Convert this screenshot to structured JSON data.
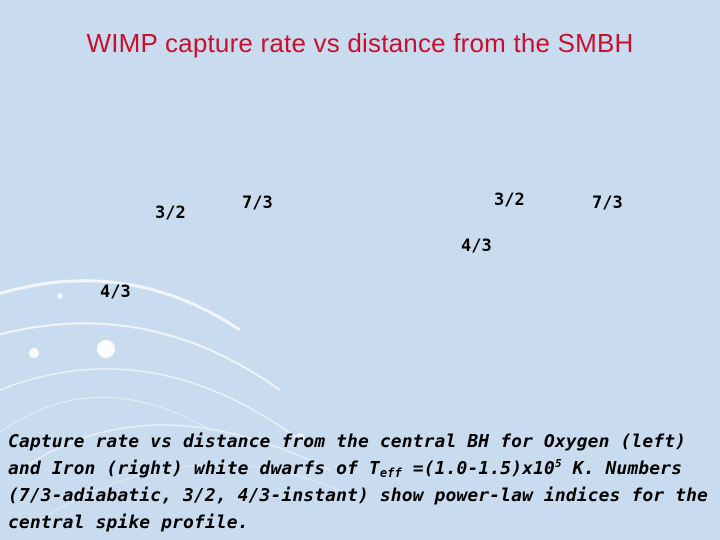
{
  "slide": {
    "title": "WIMP capture rate vs distance from the SMBH",
    "left_panel": {
      "label_a": "3/2",
      "label_b": "7/3",
      "label_c": "4/3"
    },
    "right_panel": {
      "label_a": "3/2",
      "label_b": "7/3",
      "label_c": "4/3"
    },
    "caption": {
      "part1": "Capture rate vs distance from the central BH for Oxygen (left) and Iron (right) white dwarfs of T",
      "sub": "eff",
      "part2": " =(1.0-1.5)x10",
      "sup": "5",
      "part3": " K. Numbers (7/3-adiabatic, 3/2, 4/3-instant) show power-law indices for the central spike profile."
    }
  },
  "colors": {
    "background": "#c9dcef",
    "title": "#c8102e",
    "decor": "#ffffff"
  }
}
